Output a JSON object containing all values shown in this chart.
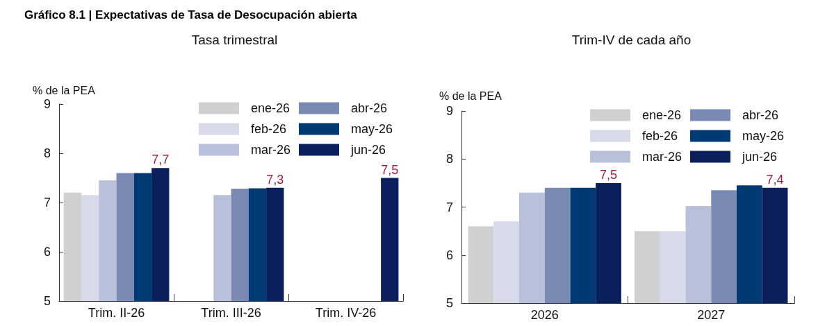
{
  "chart_data": [
    {
      "type": "bar",
      "title": "Gráfico 8.1 | Expectativas de Tasa de Desocupación abierta",
      "subtitle": "Tasa trimestral",
      "ylabel": "% de la PEA",
      "categories": [
        "Trim. II-26",
        "Trim. III-26",
        "Trim. IV-26"
      ],
      "series": [
        {
          "name": "ene-26",
          "color": "#d0d0d0",
          "values": [
            7.2,
            null,
            null
          ]
        },
        {
          "name": "feb-26",
          "color": "#d6dae9",
          "values": [
            7.15,
            null,
            null
          ]
        },
        {
          "name": "mar-26",
          "color": "#b8c0da",
          "values": [
            7.45,
            7.15,
            null
          ]
        },
        {
          "name": "abr-26",
          "color": "#7a8ab5",
          "values": [
            7.6,
            7.28,
            null
          ]
        },
        {
          "name": "may-26",
          "color": "#003a75",
          "values": [
            7.6,
            7.29,
            null
          ]
        },
        {
          "name": "jun-26",
          "color": "#0a1f5c",
          "values": [
            7.7,
            7.3,
            7.5
          ],
          "value_labels": [
            "7,7",
            "7,3",
            "7,5"
          ]
        }
      ],
      "ylim": [
        5,
        9
      ],
      "yticks": [
        5,
        6,
        7,
        8,
        9
      ],
      "grid": false,
      "legend": "top right"
    },
    {
      "type": "bar",
      "subtitle": "Trim-IV de cada año",
      "ylabel": "% de la PEA",
      "categories": [
        "2026",
        "2027"
      ],
      "series": [
        {
          "name": "ene-26",
          "color": "#d0d0d0",
          "values": [
            6.6,
            6.5
          ]
        },
        {
          "name": "feb-26",
          "color": "#d6dae9",
          "values": [
            6.7,
            6.5
          ]
        },
        {
          "name": "mar-26",
          "color": "#b8c0da",
          "values": [
            7.3,
            7.02
          ]
        },
        {
          "name": "abr-26",
          "color": "#7a8ab5",
          "values": [
            7.4,
            7.35
          ]
        },
        {
          "name": "may-26",
          "color": "#003a75",
          "values": [
            7.4,
            7.45
          ]
        },
        {
          "name": "jun-26",
          "color": "#0a1f5c",
          "values": [
            7.5,
            7.4
          ],
          "value_labels": [
            "7,5",
            "7,4"
          ]
        }
      ],
      "ylim": [
        5,
        9
      ],
      "yticks": [
        5,
        6,
        7,
        8,
        9
      ],
      "grid": false,
      "legend": "top right"
    }
  ]
}
